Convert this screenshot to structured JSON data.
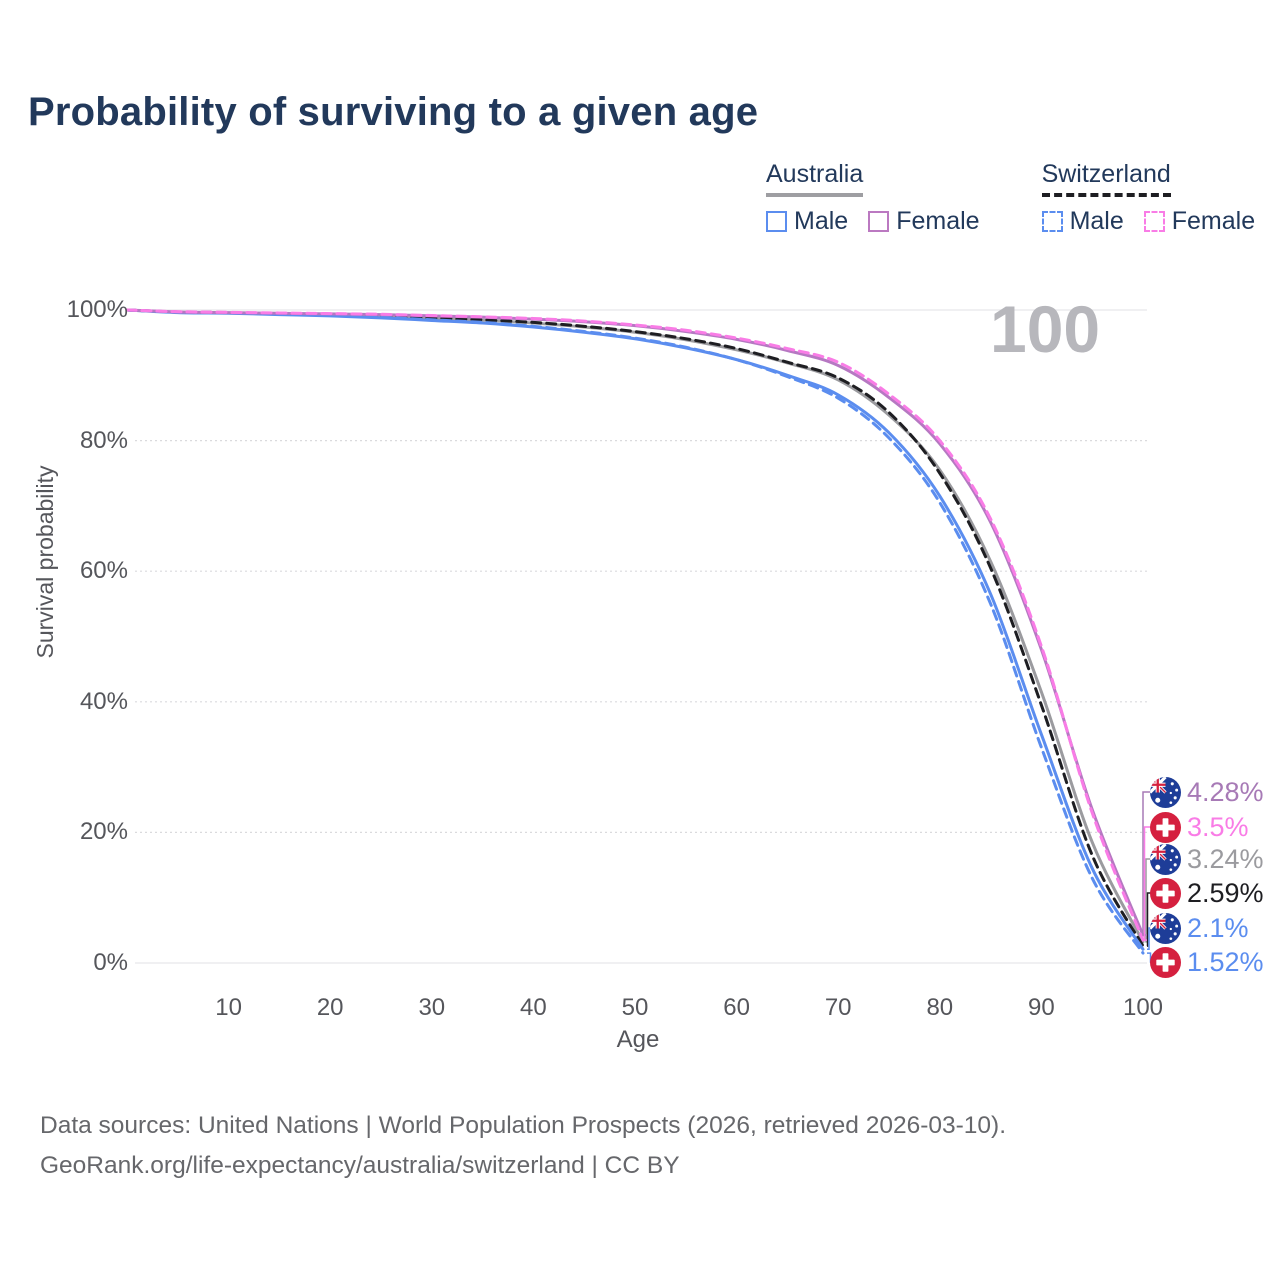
{
  "title": "Probability of surviving to a given age",
  "legend": {
    "groups": [
      {
        "label": "Australia",
        "line_style": "solid",
        "underline_color": "#9e9ea2"
      },
      {
        "label": "Switzerland",
        "line_style": "dashed",
        "underline_color": "#1e1e22"
      }
    ],
    "items": [
      {
        "group": "Australia",
        "label": "Male",
        "color": "#5b8def",
        "dashed": false
      },
      {
        "group": "Australia",
        "label": "Female",
        "color": "#bb79c1",
        "dashed": false
      },
      {
        "group": "Switzerland",
        "label": "Male",
        "color": "#5b8def",
        "dashed": true
      },
      {
        "group": "Switzerland",
        "label": "Female",
        "color": "#f97ce6",
        "dashed": true
      }
    ]
  },
  "watermark_age": "100",
  "chart_data": {
    "type": "line",
    "title": "Probability of surviving to a given age",
    "xlabel": "Age",
    "ylabel": "Survival probability",
    "xlim": [
      0,
      100
    ],
    "ylim": [
      0,
      100
    ],
    "grid": "horizontal",
    "legend_position": "top-right",
    "x_ticks": [
      10,
      20,
      30,
      40,
      50,
      60,
      70,
      80,
      90,
      100
    ],
    "y_ticks": [
      {
        "value": 100,
        "label": "100%"
      },
      {
        "value": 80,
        "label": "80%"
      },
      {
        "value": 60,
        "label": "60%"
      },
      {
        "value": 40,
        "label": "40%"
      },
      {
        "value": 20,
        "label": "20%"
      },
      {
        "value": 0,
        "label": "0%"
      }
    ],
    "ages": [
      0,
      5,
      10,
      15,
      20,
      25,
      30,
      35,
      40,
      45,
      50,
      55,
      60,
      65,
      70,
      75,
      80,
      85,
      90,
      95,
      100
    ],
    "series": [
      {
        "name": "Australia Both sexes",
        "country": "Australia",
        "sex": "Both",
        "style": "solid",
        "color": "#9b9b9f",
        "values": [
          100,
          99.65,
          99.55,
          99.4,
          99.25,
          99.05,
          98.75,
          98.45,
          98.0,
          97.4,
          96.6,
          95.45,
          93.9,
          91.9,
          89.3,
          83.9,
          75.5,
          61.5,
          41.5,
          18.5,
          3.24
        ],
        "end_value": 3.24,
        "end_label": "3.24%",
        "end_label_color": "#9b9b9f",
        "flag": "australia",
        "row": 2
      },
      {
        "name": "Switzerland Both sexes",
        "country": "Switzerland",
        "sex": "Both",
        "style": "dashed",
        "color": "#1e1e22",
        "values": [
          100,
          99.7,
          99.6,
          99.45,
          99.3,
          99.1,
          98.8,
          98.5,
          98.1,
          97.5,
          96.7,
          95.6,
          94.1,
          92.0,
          89.6,
          84.3,
          75.0,
          60.5,
          39.5,
          16.5,
          2.59
        ],
        "end_value": 2.59,
        "end_label": "2.59%",
        "end_label_color": "#1e1e22",
        "flag": "switzerland",
        "row": 3
      },
      {
        "name": "Australia Male",
        "country": "Australia",
        "sex": "Male",
        "style": "solid",
        "color": "#5b8def",
        "values": [
          100,
          99.6,
          99.5,
          99.3,
          99.1,
          98.8,
          98.4,
          98.0,
          97.4,
          96.6,
          95.6,
          94.2,
          92.4,
          90.0,
          87.0,
          81.2,
          71.5,
          56.5,
          35.0,
          14.5,
          2.1
        ],
        "end_value": 2.1,
        "end_label": "2.1%",
        "end_label_color": "#5b8def",
        "flag": "australia",
        "row": 4
      },
      {
        "name": "Switzerland Male",
        "country": "Switzerland",
        "sex": "Male",
        "style": "dashed",
        "color": "#5b8def",
        "values": [
          100,
          99.7,
          99.6,
          99.4,
          99.2,
          98.9,
          98.5,
          98.1,
          97.5,
          96.7,
          95.7,
          94.3,
          92.4,
          89.8,
          86.5,
          80.4,
          70.5,
          55.0,
          33.0,
          13.0,
          1.52
        ],
        "end_value": 1.52,
        "end_label": "1.52%",
        "end_label_color": "#5b8def",
        "flag": "switzerland",
        "row": 5
      },
      {
        "name": "Australia Female",
        "country": "Australia",
        "sex": "Female",
        "style": "solid",
        "color": "#b678c2",
        "values": [
          100,
          99.7,
          99.6,
          99.5,
          99.4,
          99.3,
          99.1,
          98.9,
          98.6,
          98.2,
          97.6,
          96.7,
          95.5,
          93.8,
          91.5,
          86.6,
          79.5,
          67.5,
          48.0,
          23.5,
          4.28
        ],
        "end_value": 4.28,
        "end_label": "4.28%",
        "end_label_color": "#a77ab6",
        "flag": "australia",
        "row": 0
      },
      {
        "name": "Switzerland Female",
        "country": "Switzerland",
        "sex": "Female",
        "style": "dashed",
        "color": "#f97ce6",
        "values": [
          100,
          99.75,
          99.65,
          99.55,
          99.45,
          99.35,
          99.15,
          98.95,
          98.7,
          98.3,
          97.7,
          96.9,
          95.7,
          94.1,
          92.0,
          87.1,
          80.0,
          68.0,
          48.5,
          23.0,
          3.5
        ],
        "end_value": 3.5,
        "end_label": "3.5%",
        "end_label_color": "#f97ce6",
        "flag": "switzerland",
        "row": 1
      }
    ],
    "annotations": {
      "hover_age": "100"
    }
  },
  "colors": {
    "title_navy": "#22395b",
    "axis_gray": "#55565b",
    "grid": "#e6e6e9",
    "watermark": "#b7b7bc",
    "australia_flag_blue": "#1e3d98",
    "swiss_flag_red": "#d5203f"
  },
  "footer": {
    "line1": "Data sources: United Nations | World Population Prospects (2026, retrieved 2026-03-10).",
    "line2": "GeoRank.org/life-expectancy/australia/switzerland | CC BY"
  }
}
